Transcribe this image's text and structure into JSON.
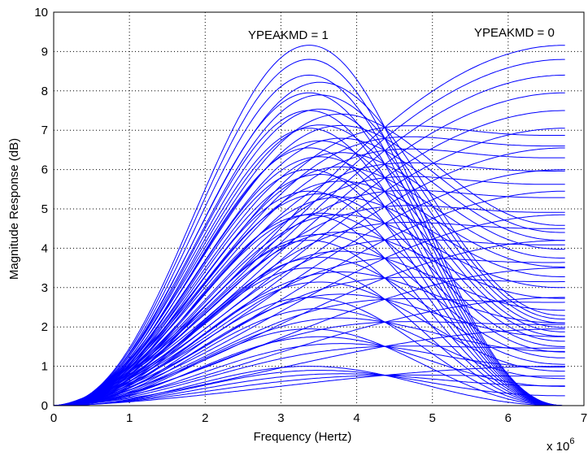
{
  "chart_data": {
    "type": "line",
    "title": "",
    "xlabel": "Frequency (Hertz)",
    "ylabel": "Magnitude Response (dB)",
    "x_multiplier_label": "x 10",
    "x_multiplier_exp": "6",
    "xlim": [
      0,
      7
    ],
    "ylim": [
      0,
      10
    ],
    "xticks": [
      "0",
      "1",
      "2",
      "3",
      "4",
      "5",
      "6",
      "7"
    ],
    "yticks": [
      "0",
      "1",
      "2",
      "3",
      "4",
      "5",
      "6",
      "7",
      "8",
      "9",
      "10"
    ],
    "grid": true,
    "line_color": "#0000ff",
    "annotations": [
      {
        "text": "YPEAKMD = 1",
        "x": 3.2,
        "y": 9.3
      },
      {
        "text": "YPEAKMD = 0",
        "x": 6.0,
        "y": 9.3
      }
    ],
    "family": {
      "description_free": true,
      "f_end": 6.75,
      "f_peak_yp1": 3.35,
      "levels_db": [
        0.78,
        1.56,
        2.34,
        3.12,
        3.9,
        4.68,
        5.46,
        6.24,
        7.02,
        7.8,
        8.58,
        9.16
      ],
      "ypeakmd_values": [
        0,
        0.25,
        0.5,
        0.75,
        1
      ]
    },
    "series": [
      {
        "ypeakmd": 1,
        "peak_x": 3.35,
        "peak_values_db": [
          1.0,
          1.95,
          2.75,
          3.5,
          4.2,
          4.85,
          5.45,
          6.0,
          6.55,
          7.05,
          7.5,
          7.95,
          8.4,
          8.8,
          9.16
        ]
      },
      {
        "ypeakmd": 0,
        "end_x": 6.75,
        "end_values_db": [
          0.85,
          1.95,
          2.75,
          3.5,
          4.2,
          4.85,
          5.45,
          6.0,
          6.55,
          7.05,
          7.5,
          7.95,
          8.4,
          8.8,
          9.16
        ]
      }
    ]
  }
}
